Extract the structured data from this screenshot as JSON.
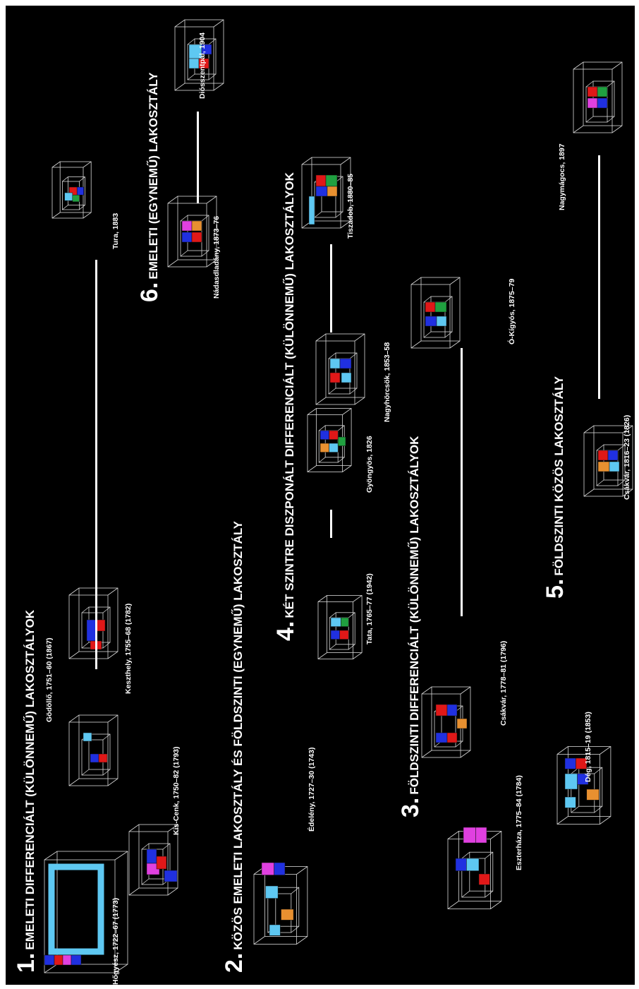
{
  "categories": [
    {
      "number": "1.",
      "title": "EMELETI DIFFERENCIÁLT (KÜLÖNNEMŰ) LAKOSZTÁLYOK"
    },
    {
      "number": "2.",
      "title": "KÖZÖS EMELETI LAKOSZTÁLY ÉS FÖLDSZINTI (EGYNEMŰ) LAKOSZTÁLY"
    },
    {
      "number": "3.",
      "title": "FÖLDSZINTI DIFFERENCIÁLT (KÜLÖNNEMŰ) LAKOSZTÁLYOK"
    },
    {
      "number": "4.",
      "title": "KÉT SZINTRE DISZPONÁLT DIFFERENCIÁLT (KÜLÖNNEMŰ) LAKOSZTÁLYOK"
    },
    {
      "number": "5.",
      "title": "FÖLDSZINTI KÖZÖS LAKOSZTÁLY"
    },
    {
      "number": "6.",
      "title": "EMELETI (EGYNEMŰ) LAKOSZTÁLY"
    }
  ],
  "buildings": [
    {
      "caption": "Hőgyész, 1722–67 (1773)"
    },
    {
      "caption": "Gödöllő, 1751–60 (1867)"
    },
    {
      "caption": "Kis-Cenk, 1750–82 (1793)"
    },
    {
      "caption": "Keszthely, 1755–68 (1782)"
    },
    {
      "caption": "Tura, 1883"
    },
    {
      "caption": "Édelény, 1727–30 (1743)"
    },
    {
      "caption": "Eszterháza, 1775–84 (1784)"
    },
    {
      "caption": "Csákvár, 1778–81 (1796)"
    },
    {
      "caption": "Ó-Kígyós, 1875–79"
    },
    {
      "caption": "Tata, 1765–77 (1942)"
    },
    {
      "caption": "Gyöngyös, 1826"
    },
    {
      "caption": "Nagyhörcsök, 1853–58"
    },
    {
      "caption": "Tiszadob, 1880–85"
    },
    {
      "caption": "Dég, 1815–19 (1853)"
    },
    {
      "caption": "Csákvár, 1816–23 (1826)"
    },
    {
      "caption": "Nagymágocs, 1897"
    },
    {
      "caption": "Nádasdladány, 1873–76"
    },
    {
      "caption": "Diósszentpál, 1904"
    }
  ],
  "colors": {
    "background": "#000000",
    "text": "#ffffff",
    "light_blue": "#5ec8f2",
    "blue": "#2030e0",
    "red": "#e01818",
    "orange": "#e89030",
    "green": "#20a040",
    "magenta": "#e040e0",
    "outline": "#d8d8d8"
  }
}
